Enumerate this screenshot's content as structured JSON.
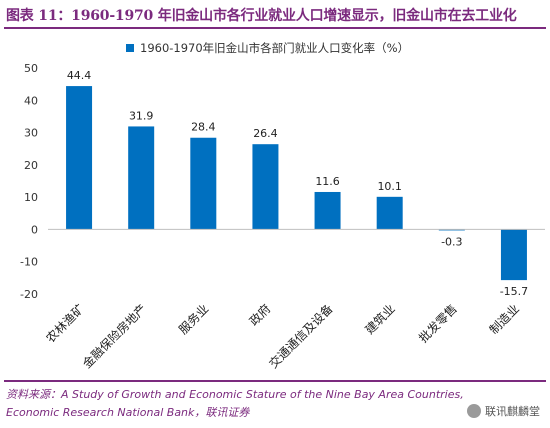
{
  "title": "图表 11：1960-1970 年旧金山市各行业就业人口增速显示，旧金山市在去工业化",
  "source_line1": "资料来源：A Study of Growth and Economic Stature of the Nine Bay Area Countries,",
  "source_line2": "Economic Research National Bank，联讯证券",
  "watermark": "联讯麒麟堂",
  "colors": {
    "bar": "#0070c0",
    "title": "#7b2a7e"
  },
  "chart_data": {
    "type": "bar",
    "categories": [
      "农林渔矿",
      "金融保险房地产",
      "服务业",
      "政府",
      "交通通信及设备",
      "建筑业",
      "批发零售",
      "制造业"
    ],
    "series": [
      {
        "name": "1960-1970年旧金山市各部门就业人口变化率（%）",
        "values": [
          44.4,
          31.9,
          28.4,
          26.4,
          11.6,
          10.1,
          -0.3,
          -15.7
        ]
      }
    ],
    "data_labels": [
      "44.4",
      "31.9",
      "28.4",
      "26.4",
      "11.6",
      "10.1",
      "-0.3",
      "-15.7"
    ],
    "ylim": [
      -20,
      50
    ],
    "yticks": [
      -20,
      -10,
      0,
      10,
      20,
      30,
      40,
      50
    ],
    "grid": false,
    "legend_position": "top"
  }
}
